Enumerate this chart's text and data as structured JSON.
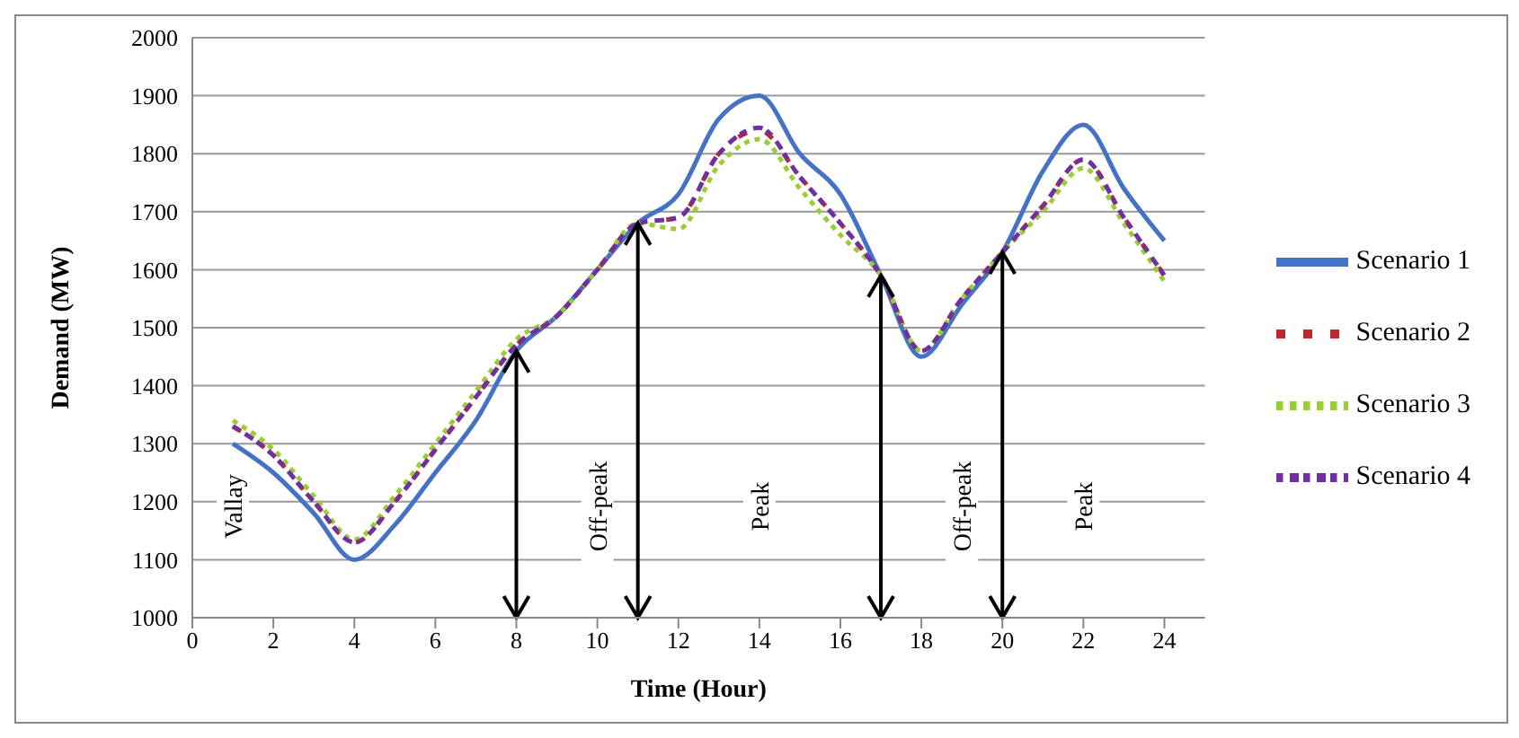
{
  "chart_data": {
    "type": "line",
    "xlabel": "Time (Hour)",
    "ylabel": "Demand (MW)",
    "x": [
      1,
      2,
      3,
      4,
      5,
      6,
      7,
      8,
      9,
      10,
      11,
      12,
      13,
      14,
      15,
      16,
      17,
      18,
      19,
      20,
      21,
      22,
      23,
      24
    ],
    "series": [
      {
        "name": "Scenario 1",
        "color": "#4472c4",
        "line_style": "solid",
        "values": [
          1300,
          1250,
          1180,
          1100,
          1160,
          1250,
          1340,
          1460,
          1520,
          1600,
          1680,
          1730,
          1860,
          1900,
          1800,
          1730,
          1590,
          1450,
          1540,
          1630,
          1770,
          1850,
          1740,
          1650
        ]
      },
      {
        "name": "Scenario 2",
        "color": "#c0282d",
        "line_style": "dashed",
        "values": [
          1330,
          1280,
          1200,
          1130,
          1200,
          1290,
          1380,
          1470,
          1520,
          1600,
          1680,
          1690,
          1800,
          1840,
          1760,
          1680,
          1590,
          1460,
          1550,
          1630,
          1710,
          1790,
          1690,
          1590
        ]
      },
      {
        "name": "Scenario 3",
        "color": "#9acd32",
        "line_style": "dotted",
        "values": [
          1340,
          1290,
          1210,
          1135,
          1210,
          1300,
          1390,
          1480,
          1520,
          1600,
          1680,
          1670,
          1780,
          1825,
          1740,
          1660,
          1590,
          1460,
          1550,
          1630,
          1700,
          1775,
          1680,
          1580
        ]
      },
      {
        "name": "Scenario 4",
        "color": "#7030a0",
        "line_style": "dashed",
        "values": [
          1330,
          1280,
          1200,
          1130,
          1200,
          1290,
          1380,
          1470,
          1520,
          1600,
          1680,
          1690,
          1800,
          1845,
          1760,
          1680,
          1590,
          1460,
          1550,
          1630,
          1710,
          1790,
          1690,
          1590
        ]
      }
    ],
    "xlim": [
      0,
      25
    ],
    "xticks": [
      0,
      2,
      4,
      6,
      8,
      10,
      12,
      14,
      16,
      18,
      20,
      22,
      24
    ],
    "ylim": [
      1000,
      2000
    ],
    "yticks": [
      1000,
      1100,
      1200,
      1300,
      1400,
      1500,
      1600,
      1700,
      1800,
      1900,
      2000
    ],
    "grid": "y",
    "legend": "right",
    "marker": "none",
    "ref_lines": [
      {
        "axis": "x",
        "value": 8
      },
      {
        "axis": "x",
        "value": 11
      },
      {
        "axis": "x",
        "value": 17
      },
      {
        "axis": "x",
        "value": 20
      }
    ],
    "annotations": [
      "Vallay",
      "Off-peak",
      "Peak",
      "Off-peak",
      "Peak"
    ]
  }
}
